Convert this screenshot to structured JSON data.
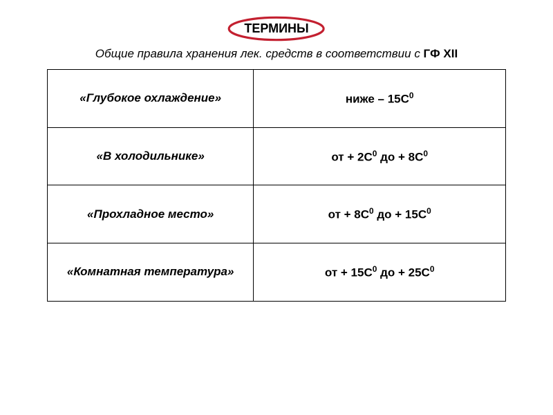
{
  "title": "ТЕРМИНЫ",
  "subtitle_italic": "Общие правила хранения  лек. средств в соответствии с ",
  "subtitle_bold": "ГФ XII",
  "table": {
    "rows": [
      {
        "term": "«Глубокое охлаждение»",
        "value_html": "ниже – 15С<sup>0</sup>"
      },
      {
        "term": "«В холодильнике»",
        "value_html": "от + 2С<sup>0</sup>  до + 8С<sup>0</sup>"
      },
      {
        "term": "«Прохладное место»",
        "value_html": "от + 8С<sup>0</sup>  до + 15С<sup>0</sup>"
      },
      {
        "term": "«Комнатная температура»",
        "value_html": "от + 15С<sup>0</sup>  до + 25С<sup>0</sup>"
      }
    ]
  },
  "styling": {
    "badge_border_color": "#c32030",
    "badge_border_width": 3,
    "table_border_color": "#000000",
    "background_color": "#ffffff",
    "text_color": "#000000",
    "title_fontsize": 18,
    "subtitle_fontsize": 17,
    "cell_fontsize": 17,
    "term_column_width_pct": 45,
    "value_column_width_pct": 55
  }
}
